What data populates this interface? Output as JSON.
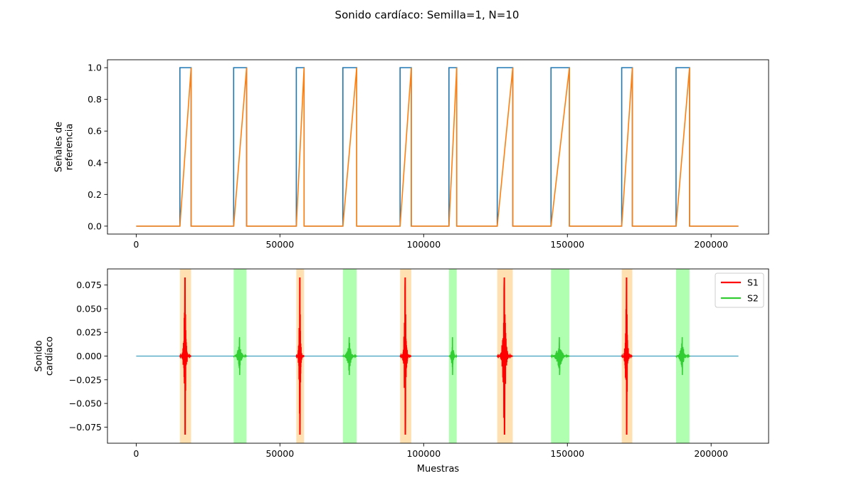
{
  "figure_title": "Sonido cardíaco: Semilla=1, N=10",
  "chart_data": [
    {
      "type": "line",
      "id": "reference-signals",
      "ylabel": "Señales de\nreferencia",
      "xlabel": "",
      "xlim": [
        -10000,
        220000
      ],
      "ylim": [
        -0.05,
        1.05
      ],
      "xticks": [
        0,
        50000,
        100000,
        150000,
        200000
      ],
      "xtick_labels": [
        "0",
        "50000",
        "100000",
        "150000",
        "200000"
      ],
      "yticks": [
        0.0,
        0.2,
        0.4,
        0.6,
        0.8,
        1.0
      ],
      "ytick_labels": [
        "0.0",
        "0.2",
        "0.4",
        "0.6",
        "0.8",
        "1.0"
      ],
      "x_range": [
        0,
        209500
      ],
      "cycles": [
        {
          "s1": [
            15200,
            19100
          ],
          "s2": [
            33900,
            38400
          ]
        },
        {
          "s1": [
            55700,
            58400
          ],
          "s2": [
            71900,
            76700
          ]
        },
        {
          "s1": [
            91800,
            95700
          ],
          "s2": [
            108800,
            111500
          ]
        },
        {
          "s1": [
            125600,
            131000
          ],
          "s2": [
            144300,
            150700
          ]
        },
        {
          "s1": [
            168900,
            172600
          ],
          "s2": [
            187800,
            192500
          ]
        }
      ],
      "series": [
        {
          "name": "square",
          "color": "#1f77b4"
        },
        {
          "name": "ramp",
          "color": "#ff7f0e"
        }
      ]
    },
    {
      "type": "line",
      "id": "heart-sound",
      "ylabel": "Sonido\ncardíaco",
      "xlabel": "Muestras",
      "xlim": [
        -10000,
        220000
      ],
      "ylim": [
        -0.092,
        0.092
      ],
      "xticks": [
        0,
        50000,
        100000,
        150000,
        200000
      ],
      "xtick_labels": [
        "0",
        "50000",
        "100000",
        "150000",
        "200000"
      ],
      "yticks": [
        0.075,
        0.05,
        0.025,
        0.0,
        -0.025,
        -0.05,
        -0.075
      ],
      "ytick_labels": [
        "0.075",
        "0.050",
        "0.025",
        "0.000",
        "−0.025",
        "−0.050",
        "−0.075"
      ],
      "s1_amplitude": 0.083,
      "s2_amplitude": 0.02,
      "baseline_color": "#1f8fb4",
      "s1_span_color": "#ffe0b0",
      "s2_span_color": "#b0ffb0",
      "legend": [
        {
          "label": "S1",
          "color": "#ff0000"
        },
        {
          "label": "S2",
          "color": "#32cd32"
        }
      ],
      "legend_position": "top-right"
    }
  ]
}
